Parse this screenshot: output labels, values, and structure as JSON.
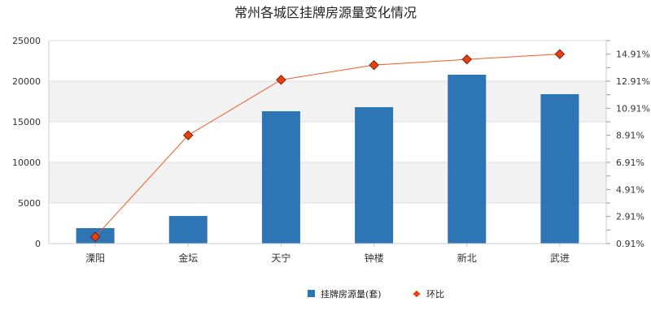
{
  "chart_data": {
    "type": "bar",
    "title": "常州各城区挂牌房源量变化情况",
    "categories": [
      "溧阳",
      "金坛",
      "天宁",
      "钟楼",
      "新北",
      "武进"
    ],
    "series": [
      {
        "name": "挂牌房源量(套)",
        "type": "bar",
        "axis": "left",
        "color": "#2e75b6",
        "values": [
          1900,
          3400,
          16300,
          16800,
          20800,
          18400
        ]
      },
      {
        "name": "环比",
        "type": "line",
        "axis": "right",
        "color": "#f05a28",
        "marker_color": "#e8400c",
        "values": [
          1.41,
          8.91,
          13.01,
          14.1,
          14.52,
          14.91
        ]
      }
    ],
    "y_left": {
      "min": 0,
      "max": 25000,
      "ticks": [
        0,
        5000,
        10000,
        15000,
        20000,
        25000
      ],
      "tick_labels": [
        "0",
        "5000",
        "10000",
        "15000",
        "20000",
        "25000"
      ]
    },
    "y_right": {
      "min": 0.91,
      "max": 15.91,
      "ticks": [
        0.91,
        2.91,
        4.91,
        6.91,
        8.91,
        10.91,
        12.91,
        14.91
      ],
      "tick_labels": [
        "0.91%",
        "2.91%",
        "4.91%",
        "6.91%",
        "8.91%",
        "10.91%",
        "12.91%",
        "14.91%"
      ]
    },
    "grid": true,
    "legend": {
      "position": "bottom-center",
      "items": [
        "挂牌房源量(套)",
        "环比"
      ]
    }
  }
}
